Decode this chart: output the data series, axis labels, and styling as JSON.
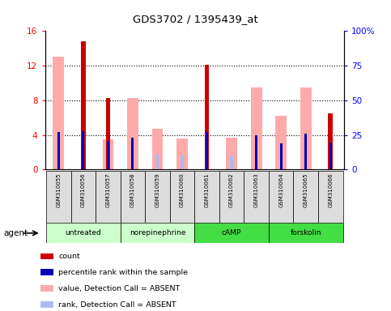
{
  "title": "GDS3702 / 1395439_at",
  "samples": [
    "GSM310055",
    "GSM310056",
    "GSM310057",
    "GSM310058",
    "GSM310059",
    "GSM310060",
    "GSM310061",
    "GSM310062",
    "GSM310063",
    "GSM310064",
    "GSM310065",
    "GSM310066"
  ],
  "group_defs": [
    {
      "label": "untreated",
      "start": 0,
      "end": 2,
      "color": "#ccffcc"
    },
    {
      "label": "norepinephrine",
      "start": 3,
      "end": 5,
      "color": "#ccffcc"
    },
    {
      "label": "cAMP",
      "start": 6,
      "end": 8,
      "color": "#44dd44"
    },
    {
      "label": "forskolin",
      "start": 9,
      "end": 11,
      "color": "#44dd44"
    }
  ],
  "value_absent": [
    13.0,
    null,
    3.5,
    8.3,
    4.7,
    3.6,
    null,
    3.7,
    9.5,
    6.2,
    9.5,
    null
  ],
  "rank_absent": [
    null,
    null,
    null,
    null,
    1.8,
    1.7,
    null,
    1.5,
    null,
    null,
    null,
    null
  ],
  "count": [
    null,
    14.8,
    8.3,
    null,
    null,
    null,
    12.1,
    null,
    null,
    null,
    null,
    6.5
  ],
  "percentile": [
    4.3,
    4.4,
    3.3,
    3.7,
    null,
    null,
    4.3,
    null,
    4.0,
    3.0,
    4.1,
    3.1
  ],
  "ylim_left": [
    0,
    16
  ],
  "ylim_right": [
    0,
    100
  ],
  "yticks_left": [
    0,
    4,
    8,
    12,
    16
  ],
  "yticks_right": [
    0,
    25,
    50,
    75,
    100
  ],
  "ytick_labels_right": [
    "0",
    "25",
    "50",
    "75",
    "100%"
  ],
  "color_count": "#cc0000",
  "color_percentile": "#0000bb",
  "color_value_absent": "#ffaaaa",
  "color_rank_absent": "#aabbee",
  "legend_items": [
    {
      "color": "#cc0000",
      "label": "count"
    },
    {
      "color": "#0000bb",
      "label": "percentile rank within the sample"
    },
    {
      "color": "#ffaaaa",
      "label": "value, Detection Call = ABSENT"
    },
    {
      "color": "#aabbee",
      "label": "rank, Detection Call = ABSENT"
    }
  ]
}
